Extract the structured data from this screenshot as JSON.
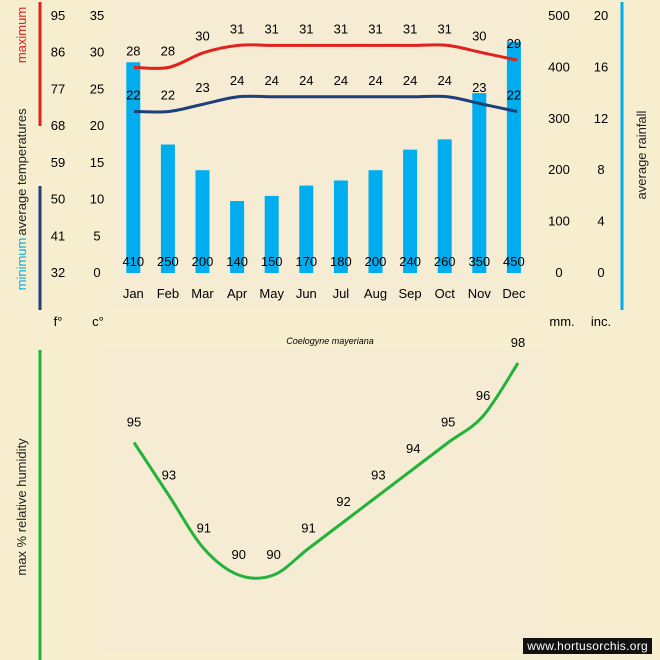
{
  "species": "Coelogyne mayeriana",
  "watermark": "www.hortusorchis.org",
  "colors": {
    "max": "#e0221d",
    "min": "#1f3f7a",
    "rain": "#00aeef",
    "humidity": "#22b33a",
    "background": "#f7edcf",
    "panel": "#f6ecd4"
  },
  "temp_chart": {
    "left_label_top": "maximum",
    "left_label_mid": "average temperatures",
    "left_label_bottom": "minimum",
    "right_label": "average rainfall",
    "unit_f": "f°",
    "unit_c": "c°",
    "unit_mm": "mm.",
    "unit_inc": "inc.",
    "f_ticks": [
      "95",
      "86",
      "77",
      "68",
      "59",
      "50",
      "41",
      "32"
    ],
    "c_ticks": [
      "35",
      "30",
      "25",
      "20",
      "15",
      "10",
      "5",
      "0"
    ],
    "mm_ticks": [
      "500",
      "400",
      "300",
      "200",
      "100",
      "0"
    ],
    "inc_ticks": [
      "20",
      "16",
      "12",
      "8",
      "4",
      "0"
    ]
  },
  "chart_data": [
    {
      "type": "bar",
      "title": "Coelogyne mayeriana",
      "categories": [
        "Jan",
        "Feb",
        "Mar",
        "Apr",
        "May",
        "Jun",
        "Jul",
        "Aug",
        "Sep",
        "Oct",
        "Nov",
        "Dec"
      ],
      "series": [
        {
          "name": "average rainfall (mm)",
          "values": [
            410,
            250,
            200,
            140,
            150,
            170,
            180,
            200,
            240,
            260,
            350,
            450
          ]
        },
        {
          "name": "maximum temperature (°C)",
          "type": "line",
          "values": [
            28,
            28,
            30,
            31,
            31,
            31,
            31,
            31,
            31,
            31,
            30,
            29
          ]
        },
        {
          "name": "minimum temperature (°C)",
          "type": "line",
          "values": [
            22,
            22,
            23,
            24,
            24,
            24,
            24,
            24,
            24,
            24,
            23,
            22
          ]
        }
      ],
      "y_left_label": "average temperatures (c°)",
      "y_right_label": "average rainfall (mm.)",
      "ylim_c": [
        0,
        35
      ],
      "ylim_mm": [
        0,
        500
      ]
    },
    {
      "type": "line",
      "categories": [
        "Jan",
        "Feb",
        "Mar",
        "Apr",
        "May",
        "Jun",
        "Jul",
        "Aug",
        "Sep",
        "Oct",
        "Nov",
        "Dec"
      ],
      "series": [
        {
          "name": "max % relative humidity",
          "values": [
            95,
            93,
            91,
            90,
            90,
            91,
            92,
            93,
            94,
            95,
            96,
            98
          ]
        }
      ],
      "ylabel": "max % relative humidity"
    }
  ],
  "humidity_label": "max %  relative humidity"
}
